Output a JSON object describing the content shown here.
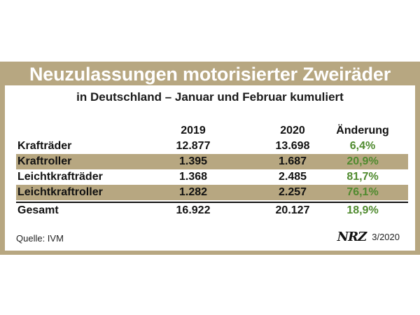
{
  "title": "Neuzulassungen motorisierter Zweiräder",
  "subtitle": "in Deutschland – Januar und Februar kumuliert",
  "chart_data": {
    "type": "table",
    "columns": [
      "",
      "2019",
      "2020",
      "Änderung"
    ],
    "rows": [
      {
        "label": "Krafträder",
        "v2019": "12.877",
        "v2020": "13.698",
        "change": "6,4%"
      },
      {
        "label": "Kraftroller",
        "v2019": "1.395",
        "v2020": "1.687",
        "change": "20,9%"
      },
      {
        "label": "Leichtkrafträder",
        "v2019": "1.368",
        "v2020": "2.485",
        "change": "81,7%"
      },
      {
        "label": "Leichtkraftroller",
        "v2019": "1.282",
        "v2020": "2.257",
        "change": "76,1%"
      }
    ],
    "total": {
      "label": "Gesamt",
      "v2019": "16.922",
      "v2020": "20.127",
      "change": "18,9%"
    }
  },
  "footer": {
    "source": "Quelle: IVM",
    "logo": "NRZ",
    "date": "3/2020"
  },
  "colors": {
    "band": "#b7a781",
    "change_text": "#4f8a2e"
  }
}
